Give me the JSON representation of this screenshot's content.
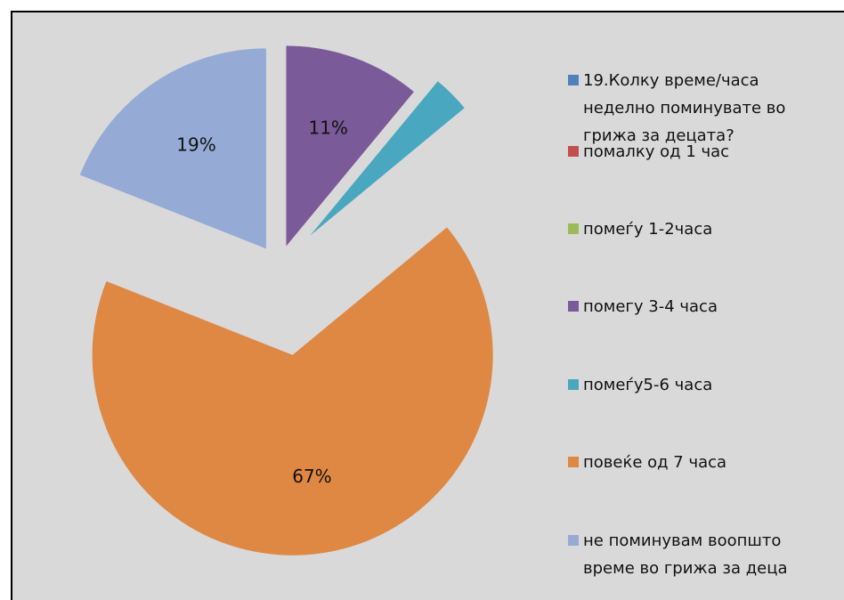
{
  "chart_data": {
    "type": "pie",
    "categories": [
      "19.Колку време/часа неделно поминувате во грижа за децата?",
      "помалку од 1 час",
      "помеѓу 1-2часа",
      "помегу 3-4 часа",
      "помеѓу5-6 часа",
      "повеќе од 7 часа",
      "не поминувам воопшто време во грижа за деца"
    ],
    "values": [
      0,
      0,
      0,
      11,
      3,
      67,
      19
    ],
    "value_labels": [
      null,
      null,
      null,
      "11%",
      null,
      "67%",
      "19%"
    ],
    "colors": [
      "#4f81bd",
      "#c0504d",
      "#9bbb59",
      "#7a5a98",
      "#4aa7c0",
      "#de8843",
      "#95abd6"
    ],
    "legend": "right"
  }
}
